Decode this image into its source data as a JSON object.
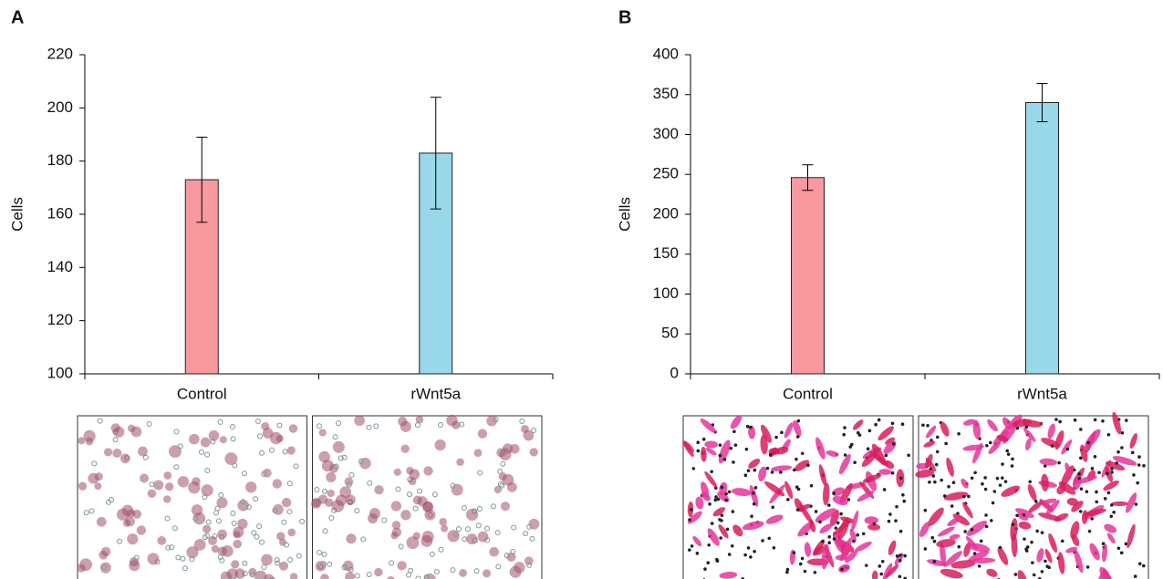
{
  "chart_data": [
    {
      "type": "bar",
      "panel": "A",
      "y_label": "Cells",
      "categories": [
        "Control",
        "rWnt5a"
      ],
      "values": [
        173,
        183
      ],
      "errors": [
        16,
        21
      ],
      "colors": [
        "#f7999e",
        "#98d8e8"
      ],
      "ylim": [
        100,
        220
      ],
      "yticks": [
        100,
        120,
        140,
        160,
        180,
        200,
        220
      ]
    },
    {
      "type": "bar",
      "panel": "B",
      "y_label": "Cells",
      "categories": [
        "Control",
        "rWnt5a"
      ],
      "values": [
        246,
        340
      ],
      "errors": [
        16,
        24
      ],
      "colors": [
        "#f7999e",
        "#98d8e8"
      ],
      "ylim": [
        0,
        400
      ],
      "yticks": [
        0,
        50,
        100,
        150,
        200,
        250,
        300,
        350,
        400
      ]
    }
  ]
}
